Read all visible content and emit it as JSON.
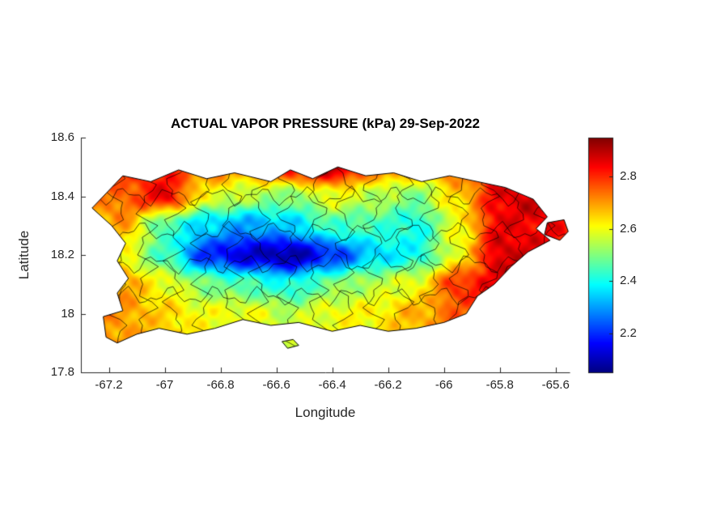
{
  "figure": {
    "background": "#ffffff",
    "region": "Puerto Rico municipalities"
  },
  "chart_data": {
    "type": "heatmap",
    "title": "ACTUAL VAPOR PRESSURE (kPa) 29-Sep-2022",
    "xlabel": "Longitude",
    "ylabel": "Latitude",
    "xlim": [
      -67.3,
      -65.55
    ],
    "ylim": [
      17.8,
      18.6
    ],
    "xticks": [
      -67.2,
      -67,
      -66.8,
      -66.6,
      -66.4,
      -66.2,
      -66,
      -65.8,
      -65.6
    ],
    "yticks": [
      17.8,
      18,
      18.2,
      18.4,
      18.6
    ],
    "colormap": "jet",
    "clim": [
      2.05,
      2.95
    ],
    "colorbar_ticks": [
      2.2,
      2.4,
      2.6,
      2.8
    ],
    "units": "kPa",
    "boundary_color": "#000000",
    "grid": {
      "lons": [
        -67.3,
        -67.15,
        -67.0,
        -66.85,
        -66.7,
        -66.55,
        -66.4,
        -66.25,
        -66.1,
        -65.95,
        -65.8,
        -65.65,
        -65.5
      ],
      "lats": [
        18.5,
        18.4,
        18.3,
        18.2,
        18.1,
        18.0,
        17.9
      ],
      "values": [
        [
          2.75,
          2.8,
          2.8,
          2.75,
          2.7,
          2.85,
          2.9,
          2.75,
          2.7,
          2.75,
          2.85,
          2.9,
          2.85
        ],
        [
          2.7,
          2.75,
          2.85,
          2.6,
          2.55,
          2.5,
          2.6,
          2.55,
          2.5,
          2.65,
          2.85,
          2.9,
          2.85
        ],
        [
          2.65,
          2.7,
          2.45,
          2.35,
          2.3,
          2.35,
          2.45,
          2.45,
          2.4,
          2.6,
          2.85,
          2.85,
          2.8
        ],
        [
          2.65,
          2.6,
          2.45,
          2.2,
          2.12,
          2.08,
          2.2,
          2.35,
          2.4,
          2.6,
          2.88,
          2.85,
          2.8
        ],
        [
          2.7,
          2.7,
          2.6,
          2.5,
          2.45,
          2.4,
          2.5,
          2.55,
          2.6,
          2.8,
          2.85,
          2.8,
          2.78
        ],
        [
          2.72,
          2.7,
          2.65,
          2.6,
          2.6,
          2.55,
          2.6,
          2.62,
          2.68,
          2.75,
          2.8,
          2.75,
          2.72
        ],
        [
          2.72,
          2.7,
          2.65,
          2.62,
          2.6,
          2.58,
          2.6,
          2.62,
          2.68,
          2.72,
          2.75,
          2.72,
          2.7
        ]
      ]
    },
    "island_outline": [
      [
        -67.21,
        18.41
      ],
      [
        -67.15,
        18.47
      ],
      [
        -67.05,
        18.45
      ],
      [
        -66.95,
        18.49
      ],
      [
        -66.85,
        18.46
      ],
      [
        -66.75,
        18.48
      ],
      [
        -66.62,
        18.45
      ],
      [
        -66.55,
        18.49
      ],
      [
        -66.47,
        18.46
      ],
      [
        -66.38,
        18.5
      ],
      [
        -66.28,
        18.47
      ],
      [
        -66.18,
        18.48
      ],
      [
        -66.08,
        18.45
      ],
      [
        -65.98,
        18.47
      ],
      [
        -65.88,
        18.45
      ],
      [
        -65.78,
        18.43
      ],
      [
        -65.68,
        18.39
      ],
      [
        -65.63,
        18.33
      ],
      [
        -65.67,
        18.29
      ],
      [
        -65.62,
        18.25
      ],
      [
        -65.7,
        18.21
      ],
      [
        -65.76,
        18.16
      ],
      [
        -65.82,
        18.1
      ],
      [
        -65.88,
        18.06
      ],
      [
        -65.92,
        18.0
      ],
      [
        -66.0,
        17.97
      ],
      [
        -66.1,
        17.95
      ],
      [
        -66.2,
        17.94
      ],
      [
        -66.3,
        17.96
      ],
      [
        -66.4,
        17.94
      ],
      [
        -66.52,
        17.97
      ],
      [
        -66.62,
        17.96
      ],
      [
        -66.72,
        17.98
      ],
      [
        -66.82,
        17.95
      ],
      [
        -66.92,
        17.93
      ],
      [
        -67.02,
        17.95
      ],
      [
        -67.1,
        17.93
      ],
      [
        -67.17,
        17.9
      ],
      [
        -67.21,
        17.92
      ],
      [
        -67.22,
        17.99
      ],
      [
        -67.15,
        18.01
      ],
      [
        -67.17,
        18.07
      ],
      [
        -67.13,
        18.12
      ],
      [
        -67.17,
        18.18
      ],
      [
        -67.14,
        18.24
      ],
      [
        -67.19,
        18.3
      ],
      [
        -67.26,
        18.36
      ],
      [
        -67.23,
        18.39
      ]
    ],
    "islets": [
      [
        [
          -65.63,
          18.31
        ],
        [
          -65.57,
          18.32
        ],
        [
          -65.555,
          18.28
        ],
        [
          -65.585,
          18.25
        ],
        [
          -65.64,
          18.27
        ]
      ],
      [
        [
          -66.58,
          17.905
        ],
        [
          -66.54,
          17.912
        ],
        [
          -66.52,
          17.892
        ],
        [
          -66.56,
          17.882
        ]
      ]
    ]
  }
}
